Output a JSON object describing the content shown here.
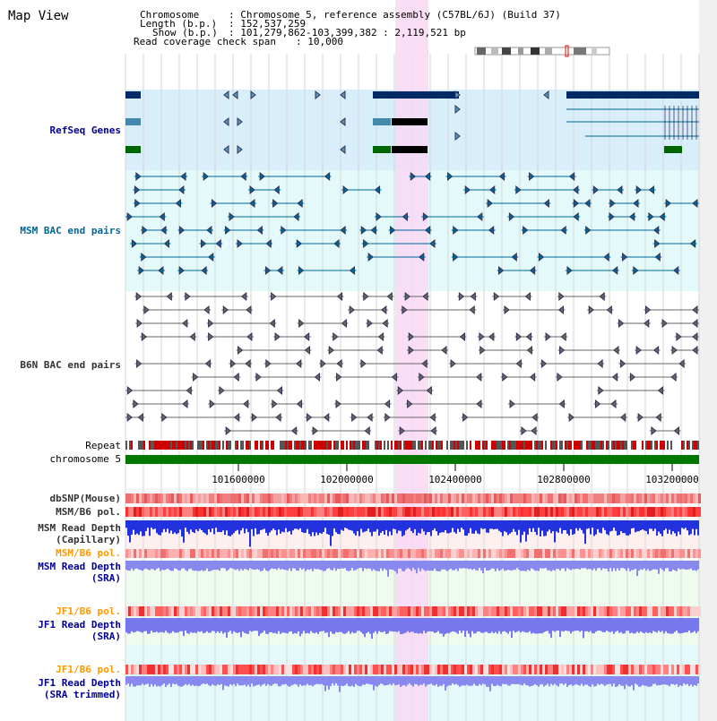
{
  "app": {
    "title": "Map View"
  },
  "info": {
    "chromosome_label": "Chromosome",
    "chromosome_value": ": Chromosome 5, reference assembly (C57BL/6J) (Build 37)",
    "length_label": "Length (b.p.)",
    "length_value": ": 152,537,259",
    "show_label": "Show (b.p.)",
    "show_value": ": 101,279,862-103,399,382 : 2,119,521 bp",
    "coverage_label": "Read coverage check span",
    "coverage_value": ": 10,000"
  },
  "tracks": {
    "refseq": "RefSeq Genes",
    "msm_bac": "MSM BAC end pairs",
    "b6n_bac": "B6N BAC end pairs",
    "repeat": "Repeat",
    "chromosome": "chromosome 5",
    "dbsnp": "dbSNP(Mouse)",
    "msm_b6_pol_1": "MSM/B6 pol.",
    "msm_depth_cap_1": "MSM Read Depth",
    "msm_depth_cap_2": "(Capillary)",
    "msm_b6_pol_2": "MSM/B6 pol.",
    "msm_depth_sra_1": "MSM Read Depth",
    "msm_depth_sra_2": "(SRA)",
    "jf1_b6_pol_1": "JF1/B6 pol.",
    "jf1_depth_sra_1": "JF1 Read Depth",
    "jf1_depth_sra_2": "(SRA)",
    "jf1_b6_pol_2": "JF1/B6 pol.",
    "jf1_depth_trim_1": "JF1 Read Depth",
    "jf1_depth_trim_2": "(SRA trimmed)"
  },
  "axis": {
    "ticks": [
      "101600000",
      "102000000",
      "102400000",
      "102800000",
      "103200000"
    ]
  },
  "colors": {
    "refseq_label": "#000099",
    "msm_label": "#006699",
    "b6n_label": "#333333",
    "orange_label": "#ff9900",
    "blue_label": "#000099",
    "highlight": "#f8d8f4",
    "refseq_bg": "#d8eefa",
    "bac_bg": "#e4fafa",
    "chromosome_bar": "#007700"
  }
}
